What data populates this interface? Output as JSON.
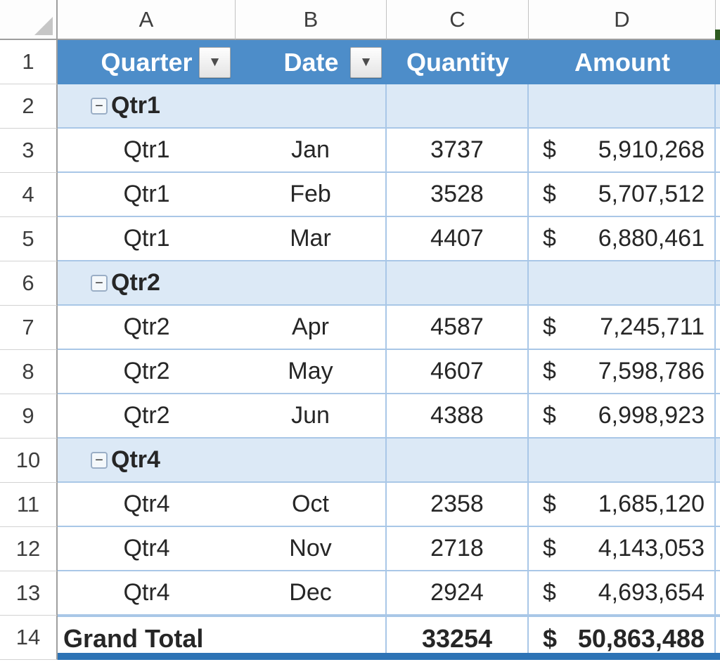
{
  "sheet": {
    "col_letters": [
      "A",
      "B",
      "C",
      "D"
    ]
  },
  "glyphs": {
    "currency": "$",
    "collapse": "−",
    "filter_arrow": "▼"
  },
  "header": {
    "num": "1",
    "quarter_label": "Quarter",
    "date_label": "Date",
    "quantity_label": "Quantity",
    "amount_label": "Amount"
  },
  "body_rows": [
    {
      "num": "2",
      "kind": "group",
      "label": "Qtr1"
    },
    {
      "num": "3",
      "kind": "data",
      "quarter": "Qtr1",
      "month": "Jan",
      "qty": "3737",
      "amount": "5,910,268"
    },
    {
      "num": "4",
      "kind": "data",
      "quarter": "Qtr1",
      "month": "Feb",
      "qty": "3528",
      "amount": "5,707,512"
    },
    {
      "num": "5",
      "kind": "data",
      "quarter": "Qtr1",
      "month": "Mar",
      "qty": "4407",
      "amount": "6,880,461"
    },
    {
      "num": "6",
      "kind": "group",
      "label": "Qtr2"
    },
    {
      "num": "7",
      "kind": "data",
      "quarter": "Qtr2",
      "month": "Apr",
      "qty": "4587",
      "amount": "7,245,711"
    },
    {
      "num": "8",
      "kind": "data",
      "quarter": "Qtr2",
      "month": "May",
      "qty": "4607",
      "amount": "7,598,786"
    },
    {
      "num": "9",
      "kind": "data",
      "quarter": "Qtr2",
      "month": "Jun",
      "qty": "4388",
      "amount": "6,998,923"
    },
    {
      "num": "10",
      "kind": "group",
      "label": "Qtr4"
    },
    {
      "num": "11",
      "kind": "data",
      "quarter": "Qtr4",
      "month": "Oct",
      "qty": "2358",
      "amount": "1,685,120"
    },
    {
      "num": "12",
      "kind": "data",
      "quarter": "Qtr4",
      "month": "Nov",
      "qty": "2718",
      "amount": "4,143,053"
    },
    {
      "num": "13",
      "kind": "data",
      "quarter": "Qtr4",
      "month": "Dec",
      "qty": "2924",
      "amount": "4,693,654"
    }
  ],
  "grand_total": {
    "num": "14",
    "label": "Grand Total",
    "qty": "33254",
    "amount": "50,863,488"
  },
  "colors": {
    "header-bg": "#4d8dc9",
    "header-text": "#ffffff",
    "group-bg": "#dce9f6",
    "grid-blue": "#a9c7e7",
    "total-bar": "#2d73b5",
    "cell-text": "#262626",
    "heading-text": "#3e3e3e",
    "corner-triangle": "#c6c6c6",
    "green-notch": "#2e5b21"
  }
}
